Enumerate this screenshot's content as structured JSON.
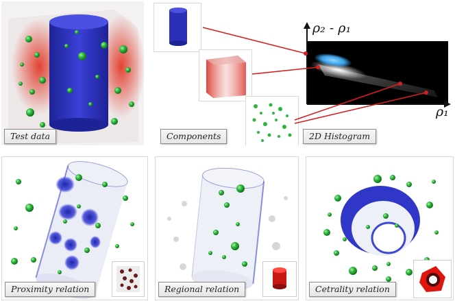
{
  "captions": {
    "test_data": "Test data",
    "components": "Components",
    "histogram": "2D Histogram",
    "proximity": "Proximity relation",
    "regional": "Regional relation",
    "centrality": "Cetrality relation"
  },
  "histogram_axes": {
    "y_label": "ρ₂ - ρ₁",
    "x_label": "ρ₁"
  },
  "colors": {
    "cylinder_blue": "#2a2fb8",
    "region_red": "#d9241c",
    "sphere_green": "#2bb53a",
    "link_red": "#d42020",
    "histogram_bg": "#000000"
  }
}
